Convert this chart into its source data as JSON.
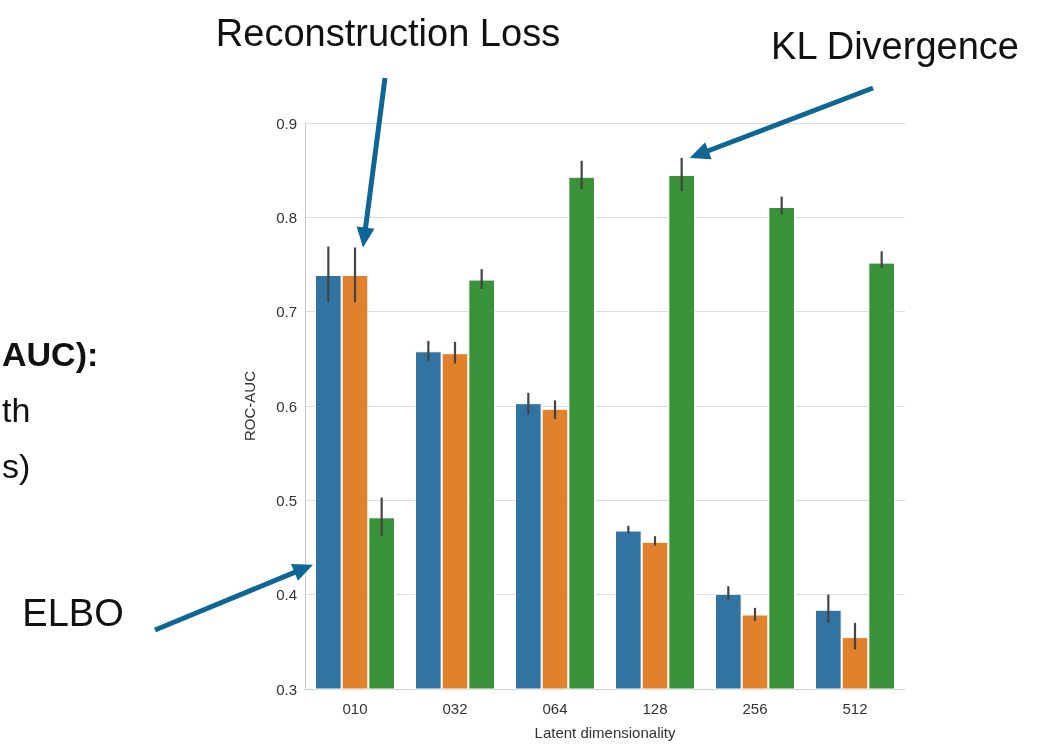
{
  "chart_data": {
    "type": "bar",
    "xlabel": "Latent dimensionality",
    "ylabel": "ROC-AUC",
    "categories": [
      "010",
      "032",
      "064",
      "128",
      "256",
      "512"
    ],
    "series": [
      {
        "color": "#3274a1",
        "values": [
          0.739,
          0.658,
          0.603,
          0.468,
          0.401,
          0.384
        ],
        "errors": [
          [
            0.71,
            0.769
          ],
          [
            0.648,
            0.669
          ],
          [
            0.591,
            0.614
          ],
          [
            0.465,
            0.473
          ],
          [
            0.394,
            0.409
          ],
          [
            0.37,
            0.4
          ]
        ]
      },
      {
        "color": "#e1812c",
        "values": [
          0.739,
          0.656,
          0.597,
          0.456,
          0.379,
          0.355
        ],
        "errors": [
          [
            0.71,
            0.768
          ],
          [
            0.645,
            0.668
          ],
          [
            0.586,
            0.606
          ],
          [
            0.452,
            0.462
          ],
          [
            0.372,
            0.386
          ],
          [
            0.342,
            0.37
          ]
        ]
      },
      {
        "color": "#3a923a",
        "values": [
          0.482,
          0.734,
          0.843,
          0.845,
          0.811,
          0.752
        ],
        "errors": [
          [
            0.462,
            0.503
          ],
          [
            0.724,
            0.745
          ],
          [
            0.83,
            0.86
          ],
          [
            0.828,
            0.863
          ],
          [
            0.803,
            0.822
          ],
          [
            0.746,
            0.764
          ]
        ]
      }
    ],
    "ylim": [
      0.3,
      0.9
    ],
    "yticks": [
      0.3,
      0.4,
      0.5,
      0.6,
      0.7,
      0.8,
      0.9
    ],
    "grid": "y",
    "annotations": [
      "ELBO",
      "Reconstruction Loss",
      "KL Divergence",
      "AUC):",
      "th",
      "s)"
    ]
  }
}
